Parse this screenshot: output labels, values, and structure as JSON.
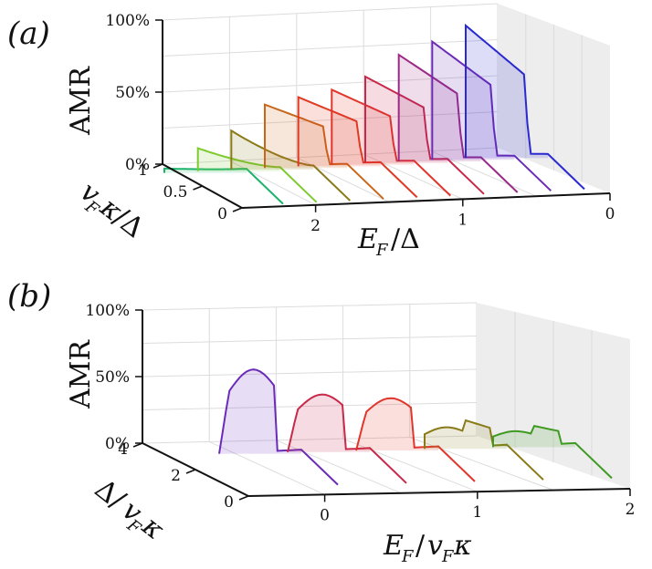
{
  "chart_data": [
    {
      "panel": "(a)",
      "type": "area",
      "zlabel": "AMR",
      "xlabel": "E_F/Δ",
      "ylabel": "v_Fκ/Δ",
      "x_ticks": [
        "2",
        "1",
        "0"
      ],
      "y_ticks": [
        "0",
        "0.5",
        "1"
      ],
      "z_ticks": [
        "0%",
        "50%",
        "100%"
      ],
      "zlim": [
        0,
        100
      ],
      "series": [
        {
          "color": "#1db36a",
          "peak": 3,
          "mode": "decay"
        },
        {
          "color": "#7ecb2f",
          "peak": 16,
          "mode": "decay"
        },
        {
          "color": "#8a7a18",
          "peak": 27,
          "mode": "decay"
        },
        {
          "color": "#c8671a",
          "peak": 44,
          "mode": "step"
        },
        {
          "color": "#e03a22",
          "peak": 48,
          "mode": "step"
        },
        {
          "color": "#e0362c",
          "peak": 52,
          "mode": "step"
        },
        {
          "color": "#c8284a",
          "peak": 60,
          "mode": "step"
        },
        {
          "color": "#9a2a86",
          "peak": 74,
          "mode": "step"
        },
        {
          "color": "#6c2bb4",
          "peak": 82,
          "mode": "step"
        },
        {
          "color": "#2a2ad0",
          "peak": 92,
          "mode": "step"
        }
      ]
    },
    {
      "panel": "(b)",
      "type": "area",
      "zlabel": "AMR",
      "xlabel": "E_F/v_Fκ",
      "ylabel": "Δ/v_Fκ",
      "x_ticks": [
        "0",
        "1",
        "2"
      ],
      "y_ticks": [
        "0",
        "2",
        "4"
      ],
      "z_ticks": [
        "0%",
        "50%",
        "100%"
      ],
      "zlim": [
        0,
        100
      ],
      "series": [
        {
          "color": "#6a2bb8",
          "peak": 62,
          "mode": "hump"
        },
        {
          "color": "#c8284a",
          "peak": 42,
          "mode": "hump"
        },
        {
          "color": "#e0362c",
          "peak": 38,
          "mode": "hump"
        },
        {
          "color": "#8a7a18",
          "peak": 22,
          "mode": "wiggle"
        },
        {
          "color": "#3e9a22",
          "peak": 16,
          "mode": "wiggle"
        }
      ]
    }
  ],
  "labels": {
    "panel_a": "(a)",
    "panel_b": "(b)",
    "amr": "AMR"
  }
}
